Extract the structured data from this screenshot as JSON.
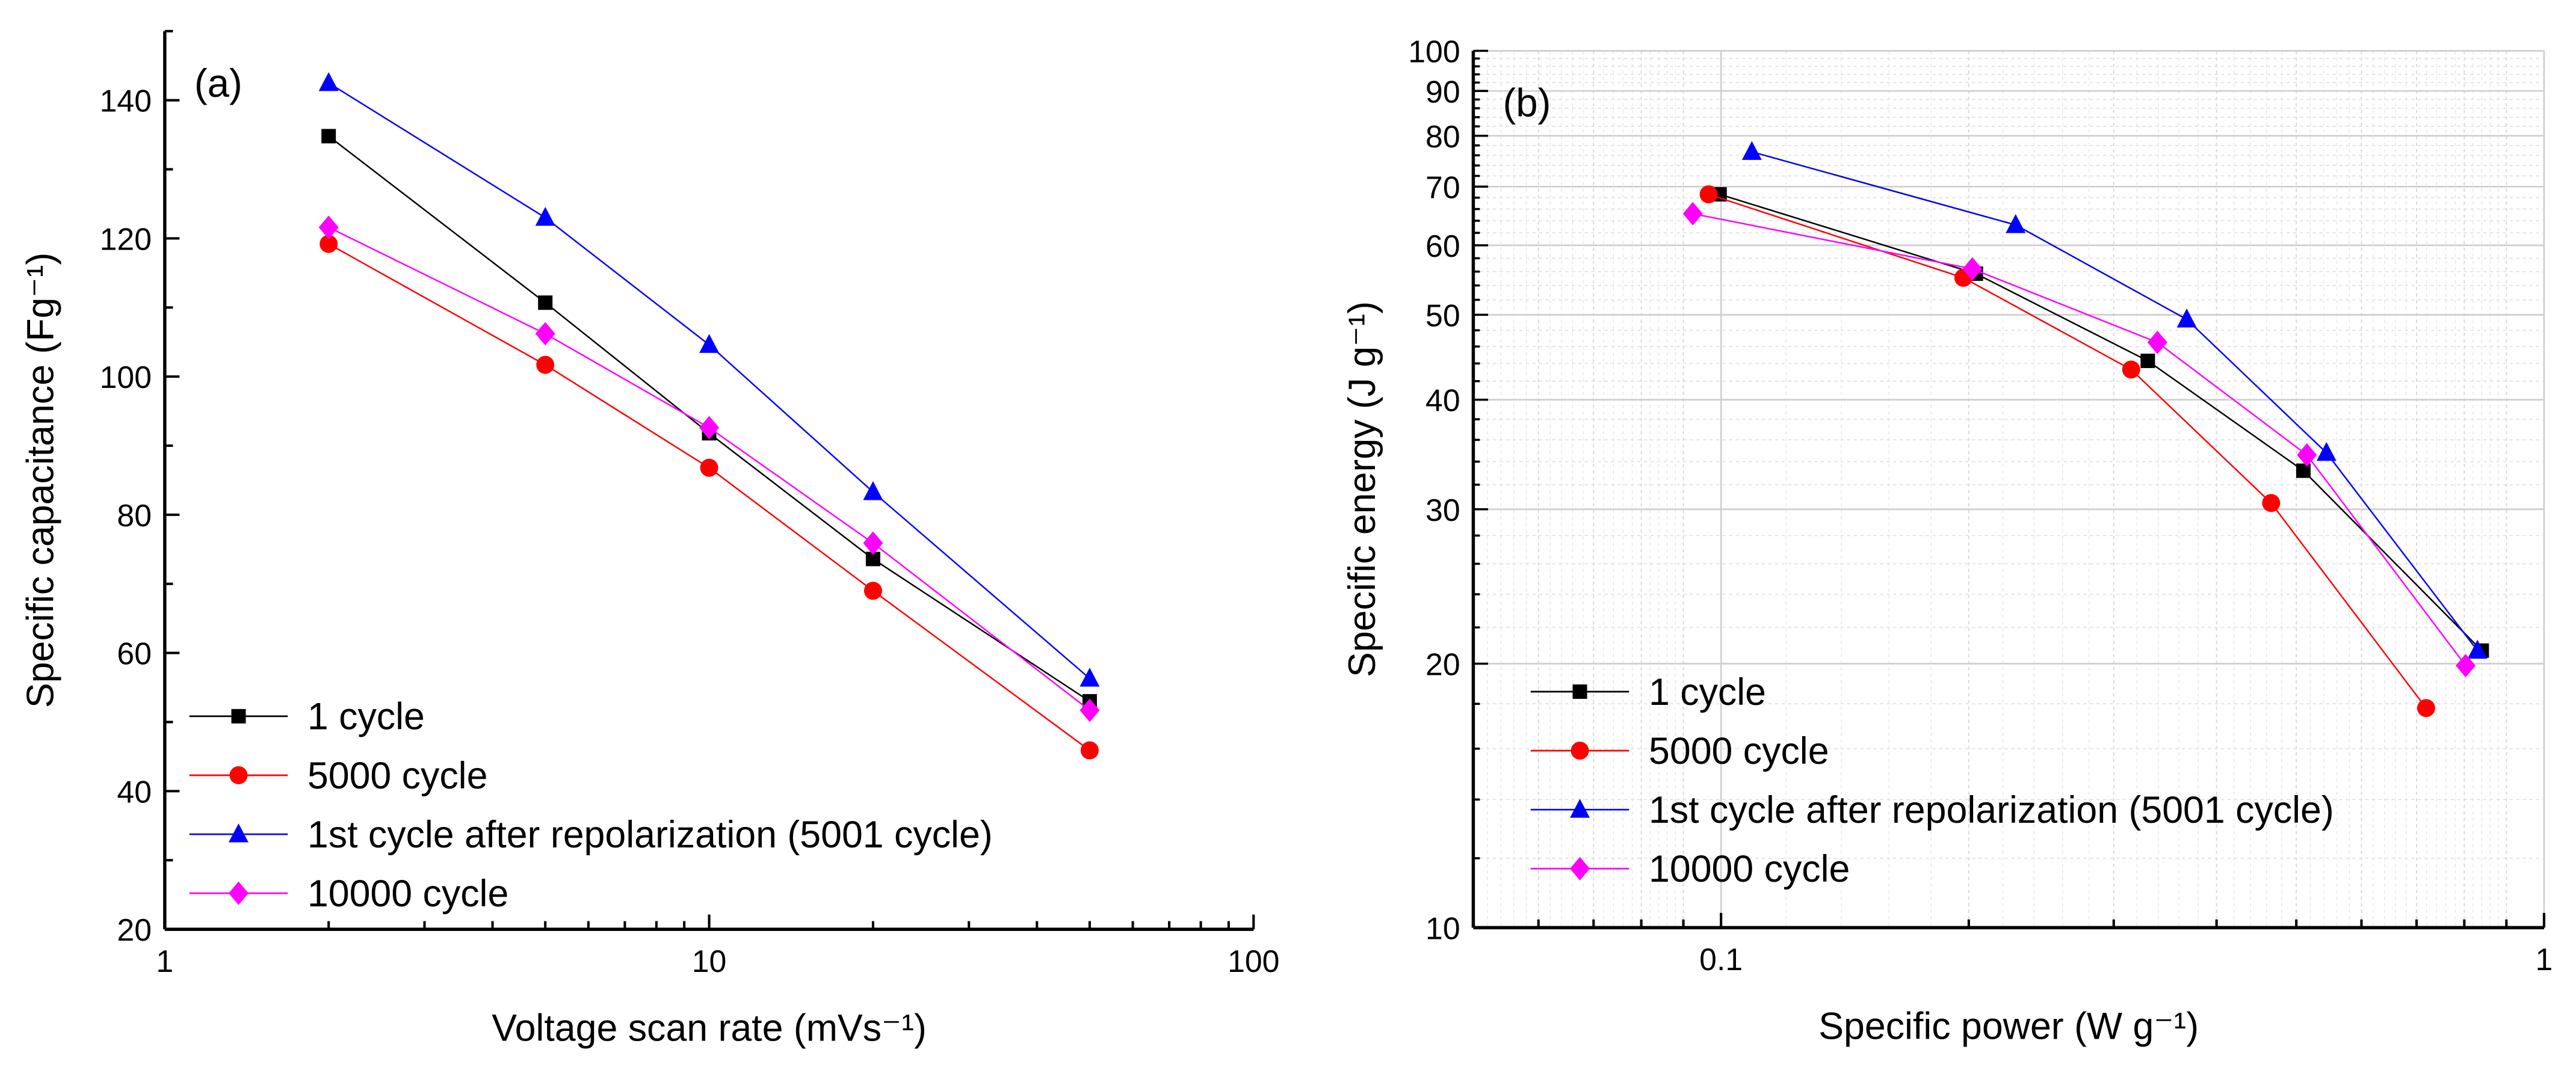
{
  "chart_data": [
    {
      "type": "line",
      "panel_label": "(a)",
      "xlabel": "Voltage scan rate (mVs⁻¹)",
      "ylabel": "Specific capacitance (Fg⁻¹)",
      "xscale": "log",
      "xlim": [
        1,
        100
      ],
      "ylim": [
        20,
        150
      ],
      "xticks": [
        "1",
        "10",
        "100"
      ],
      "yticks": [
        "20",
        "40",
        "60",
        "80",
        "100",
        "120",
        "140"
      ],
      "grid": false,
      "legend_position": "bottom-left",
      "x": [
        2,
        5,
        10,
        20,
        50
      ],
      "series": [
        {
          "name": "1 cycle",
          "color": "#000000",
          "marker": "square",
          "values": [
            134.8,
            110.7,
            91.8,
            73.6,
            53.0
          ]
        },
        {
          "name": "5000 cycle",
          "color": "#ff0000",
          "marker": "circle",
          "values": [
            119.2,
            101.7,
            86.8,
            69.0,
            45.9
          ]
        },
        {
          "name": "1st cycle after repolarization (5001 cycle)",
          "color": "#0000ff",
          "marker": "triangle",
          "values": [
            142.5,
            123.0,
            104.6,
            83.3,
            56.3
          ]
        },
        {
          "name": "10000 cycle",
          "color": "#ff00ff",
          "marker": "diamond",
          "values": [
            121.6,
            106.2,
            92.6,
            75.9,
            51.7
          ]
        }
      ]
    },
    {
      "type": "line",
      "panel_label": "(b)",
      "xlabel": "Specific power (W g⁻¹)",
      "ylabel": "Specific energy (J g⁻¹)",
      "xscale": "log",
      "yscale": "log",
      "xlim": [
        0.05,
        1
      ],
      "ylim": [
        10,
        100
      ],
      "xticks": [
        "0.1",
        "1"
      ],
      "yticks": [
        "10",
        "20",
        "30",
        "40",
        "50",
        "60",
        "70",
        "80",
        "90",
        "100"
      ],
      "grid": true,
      "legend_position": "bottom-left",
      "series": [
        {
          "name": "1 cycle",
          "color": "#000000",
          "marker": "square",
          "x": [
            0.0996,
            0.204,
            0.33,
            0.51,
            0.84
          ],
          "values": [
            68.6,
            55.7,
            44.3,
            33.2,
            20.7
          ]
        },
        {
          "name": "5000 cycle",
          "color": "#ff0000",
          "marker": "circle",
          "x": [
            0.0966,
            0.197,
            0.315,
            0.466,
            0.719
          ],
          "values": [
            68.6,
            55.1,
            43.3,
            30.5,
            17.8
          ]
        },
        {
          "name": "1st cycle after repolarization (5001 cycle)",
          "color": "#0000ff",
          "marker": "triangle",
          "x": [
            0.109,
            0.228,
            0.368,
            0.544,
            0.83
          ],
          "values": [
            76.7,
            63.3,
            49.4,
            34.8,
            20.7
          ]
        },
        {
          "name": "10000 cycle",
          "color": "#ff00ff",
          "marker": "diamond",
          "x": [
            0.0924,
            0.202,
            0.339,
            0.515,
            0.803
          ],
          "values": [
            65.2,
            56.4,
            46.5,
            34.6,
            19.9
          ]
        }
      ]
    }
  ]
}
